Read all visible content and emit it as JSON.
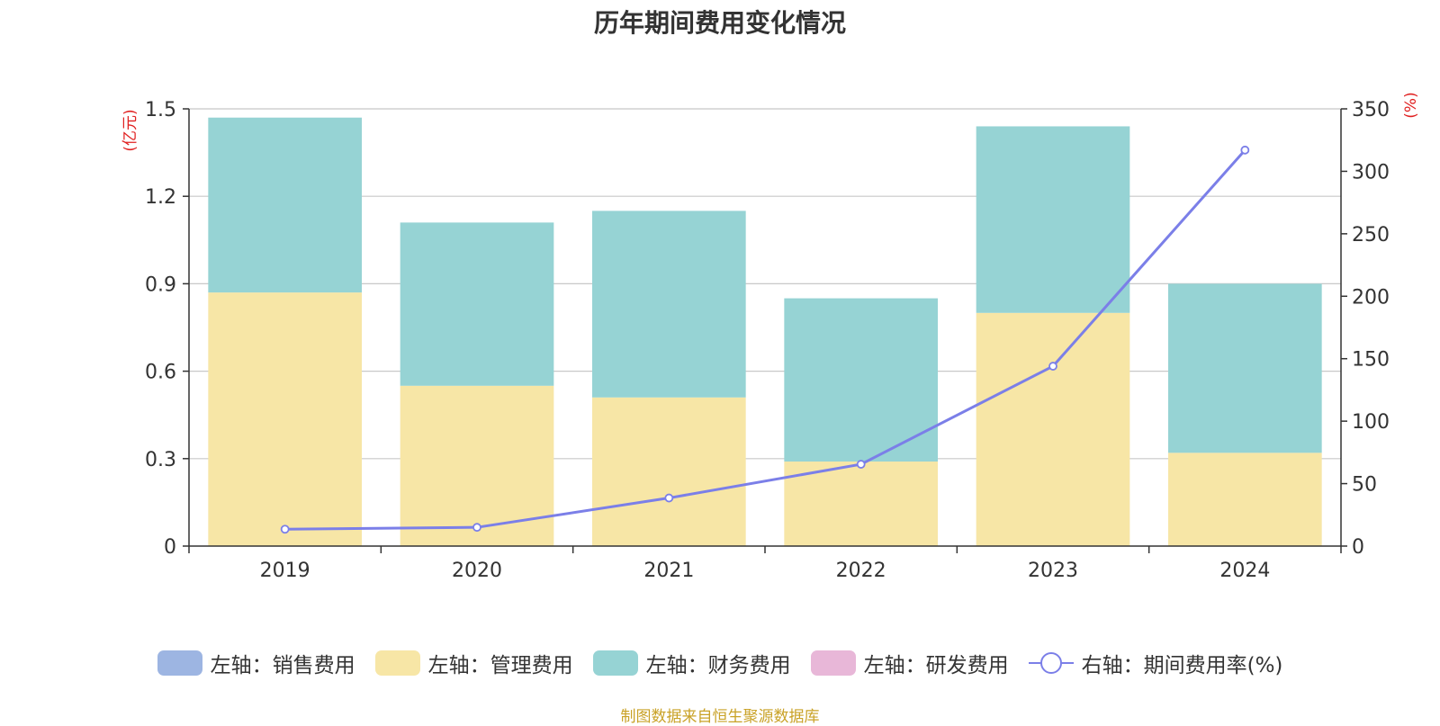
{
  "chart_data": {
    "type": "bar",
    "title": "历年期间费用变化情况",
    "categories": [
      "2019",
      "2020",
      "2021",
      "2022",
      "2023",
      "2024"
    ],
    "stacked": true,
    "left_axis": {
      "unit_label": "(亿元)",
      "ylim": [
        0,
        1.5
      ],
      "ticks": [
        "0",
        "0.3",
        "0.6",
        "0.9",
        "1.2",
        "1.5"
      ]
    },
    "right_axis": {
      "unit_label": "(%)",
      "ylim": [
        0,
        350
      ],
      "ticks": [
        "0",
        "50",
        "100",
        "150",
        "200",
        "250",
        "300",
        "350"
      ]
    },
    "series": [
      {
        "name": "左轴：销售费用",
        "type": "bar",
        "axis": "left",
        "color": "#9db5e2",
        "values": [
          0,
          0,
          0,
          0,
          0,
          0
        ]
      },
      {
        "name": "左轴：管理费用",
        "type": "bar",
        "axis": "left",
        "color": "#f7e6a6",
        "values": [
          0.87,
          0.55,
          0.51,
          0.29,
          0.8,
          0.32
        ]
      },
      {
        "name": "左轴：财务费用",
        "type": "bar",
        "axis": "left",
        "color": "#96d3d4",
        "values": [
          0.6,
          0.56,
          0.64,
          0.56,
          0.64,
          0.58
        ]
      },
      {
        "name": "左轴：研发费用",
        "type": "bar",
        "axis": "left",
        "color": "#e8b7d8",
        "values": [
          0,
          0,
          0,
          0,
          0,
          0
        ]
      },
      {
        "name": "右轴：期间费用率(%)",
        "type": "line",
        "axis": "right",
        "color": "#7b7fe8",
        "values": [
          13.5,
          15,
          38.5,
          65.5,
          144,
          317
        ]
      }
    ],
    "grid": true,
    "legend_position": "bottom"
  },
  "source_note": "制图数据来自恒生聚源数据库"
}
